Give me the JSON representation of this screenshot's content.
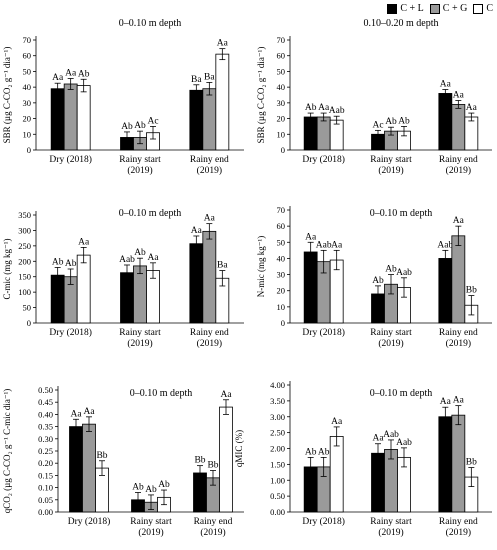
{
  "legend": {
    "items": [
      {
        "label": "C + L",
        "color": "#000000"
      },
      {
        "label": "C + G",
        "color": "#9a9a9a"
      },
      {
        "label": "C",
        "color": "#ffffff"
      }
    ]
  },
  "chart_data": [
    {
      "type": "bar",
      "title": "0–0.10 m depth",
      "ylabel": "SBR (µg C-CO₂ g⁻¹ dia⁻¹)",
      "ylim": [
        0,
        70
      ],
      "yticks": [
        0,
        10,
        20,
        30,
        40,
        50,
        60,
        70
      ],
      "tick_decimals": 0,
      "categories": [
        [
          "Dry (2018)"
        ],
        [
          "Rainy start",
          "(2019)"
        ],
        [
          "Rainy end",
          "(2019)"
        ]
      ],
      "series": [
        {
          "name": "C + L",
          "values": [
            39,
            8,
            38
          ],
          "errors": [
            3.5,
            3.5,
            3.5
          ],
          "labels": [
            "Aa",
            "Ab",
            "Ba"
          ]
        },
        {
          "name": "C + G",
          "values": [
            42,
            8,
            39
          ],
          "errors": [
            3.5,
            4,
            4
          ],
          "labels": [
            "Aa",
            "Ab",
            "Ba"
          ]
        },
        {
          "name": "C",
          "values": [
            41,
            11,
            61
          ],
          "errors": [
            4,
            4,
            3.5
          ],
          "labels": [
            "Ab",
            "Ac",
            "Aa"
          ]
        }
      ]
    },
    {
      "type": "bar",
      "title": "0.10–0.20 m depth",
      "ylabel": "SBR (µg C-CO₂ g⁻¹ dia⁻¹)",
      "ylim": [
        0,
        70
      ],
      "yticks": [
        0,
        10,
        20,
        30,
        40,
        50,
        60,
        70
      ],
      "tick_decimals": 0,
      "categories": [
        [
          "Dry (2018)"
        ],
        [
          "Rainy start",
          "(2019)"
        ],
        [
          "Rainy end",
          "(2019)"
        ]
      ],
      "series": [
        {
          "name": "C + L",
          "values": [
            21,
            10,
            36
          ],
          "errors": [
            2.5,
            2.5,
            2.5
          ],
          "labels": [
            "Ab",
            "Ac",
            "Aa"
          ]
        },
        {
          "name": "C + G",
          "values": [
            21,
            12,
            29
          ],
          "errors": [
            2.5,
            2.5,
            2.5
          ],
          "labels": [
            "Aa",
            "Ab",
            "Aa"
          ]
        },
        {
          "name": "C",
          "values": [
            19,
            12,
            21
          ],
          "errors": [
            2.5,
            3,
            2.5
          ],
          "labels": [
            "Aab",
            "Ab",
            "Aa"
          ]
        }
      ]
    },
    {
      "type": "bar",
      "title": "0–0.10 m depth",
      "ylabel": "C-mic (mg kg⁻¹)",
      "ylim": [
        0,
        350
      ],
      "yticks": [
        0,
        50,
        100,
        150,
        200,
        250,
        300,
        350
      ],
      "tick_decimals": 0,
      "categories": [
        [
          "Dry (2018)"
        ],
        [
          "Rainy start",
          "(2019)"
        ],
        [
          "Rainy end",
          "(2019)"
        ]
      ],
      "series": [
        {
          "name": "C + L",
          "values": [
            155,
            163,
            257
          ],
          "errors": [
            25,
            25,
            25
          ],
          "labels": [
            "Ab",
            "Aab",
            "Aa"
          ]
        },
        {
          "name": "C + G",
          "values": [
            150,
            185,
            297
          ],
          "errors": [
            25,
            25,
            25
          ],
          "labels": [
            "Ab",
            "Ab",
            "Aa"
          ]
        },
        {
          "name": "C",
          "values": [
            220,
            170,
            145
          ],
          "errors": [
            25,
            25,
            25
          ],
          "labels": [
            "Aa",
            "Aa",
            "Ba"
          ]
        }
      ]
    },
    {
      "type": "bar",
      "title": "0–0.10 m depth",
      "ylabel": "N-mic (mg kg⁻¹)",
      "ylim": [
        0,
        70
      ],
      "yticks": [
        0,
        10,
        20,
        30,
        40,
        50,
        60,
        70
      ],
      "tick_decimals": 0,
      "categories": [
        [
          "Dry (2018)"
        ],
        [
          "Rainy start",
          "(2019)"
        ],
        [
          "Rainy end",
          "(2019)"
        ]
      ],
      "series": [
        {
          "name": "C + L",
          "values": [
            44,
            18,
            40
          ],
          "errors": [
            6,
            5,
            5
          ],
          "labels": [
            "Aa",
            "Ab",
            "Aab"
          ]
        },
        {
          "name": "C + G",
          "values": [
            38,
            24,
            54
          ],
          "errors": [
            7,
            6,
            6
          ],
          "labels": [
            "Aab",
            "Ab",
            "Aa"
          ]
        },
        {
          "name": "C",
          "values": [
            39,
            22,
            11
          ],
          "errors": [
            6,
            6,
            6
          ],
          "labels": [
            "Aa",
            "Aab",
            "Bb"
          ]
        }
      ]
    },
    {
      "type": "bar",
      "title": "0–0.10 m depth",
      "ylabel": "qCO₂ (µg C-CO₂ g⁻¹ C-mic dia⁻¹)",
      "ylim": [
        0,
        0.5
      ],
      "yticks": [
        0,
        0.05,
        0.1,
        0.15,
        0.2,
        0.25,
        0.3,
        0.35,
        0.4,
        0.45,
        0.5
      ],
      "tick_decimals": 2,
      "categories": [
        [
          "Dry (2018)"
        ],
        [
          "Rainy start",
          "(2019)"
        ],
        [
          "Rainy end",
          "(2019)"
        ]
      ],
      "series": [
        {
          "name": "C + L",
          "values": [
            0.35,
            0.05,
            0.16
          ],
          "errors": [
            0.03,
            0.03,
            0.03
          ],
          "labels": [
            "Aa",
            "Ab",
            "Bb"
          ]
        },
        {
          "name": "C + G",
          "values": [
            0.36,
            0.04,
            0.14
          ],
          "errors": [
            0.03,
            0.03,
            0.03
          ],
          "labels": [
            "Aa",
            "Ab",
            "Bb"
          ]
        },
        {
          "name": "C",
          "values": [
            0.18,
            0.06,
            0.43
          ],
          "errors": [
            0.03,
            0.03,
            0.03
          ],
          "labels": [
            "Bb",
            "Ab",
            "Aa"
          ]
        }
      ]
    },
    {
      "type": "bar",
      "title": "0–0.10 m depth",
      "ylabel": "qMIC (%)",
      "ylim": [
        0,
        4
      ],
      "yticks": [
        0,
        0.5,
        1,
        1.5,
        2,
        2.5,
        3,
        3.5,
        4
      ],
      "tick_decimals": 2,
      "categories": [
        [
          "Dry (2018)"
        ],
        [
          "Rainy start",
          "(2019)"
        ],
        [
          "Rainy end",
          "(2019)"
        ]
      ],
      "series": [
        {
          "name": "C + L",
          "values": [
            1.42,
            1.85,
            3.0
          ],
          "errors": [
            0.3,
            0.3,
            0.3
          ],
          "labels": [
            "Ab",
            "Aa",
            "Aa"
          ]
        },
        {
          "name": "C + G",
          "values": [
            1.42,
            1.97,
            3.05
          ],
          "errors": [
            0.3,
            0.3,
            0.3
          ],
          "labels": [
            "Ab",
            "Aab",
            "Aa"
          ]
        },
        {
          "name": "C",
          "values": [
            2.38,
            1.72,
            1.1
          ],
          "errors": [
            0.3,
            0.3,
            0.3
          ],
          "labels": [
            "Aa",
            "Aab",
            "Bb"
          ]
        }
      ]
    }
  ]
}
